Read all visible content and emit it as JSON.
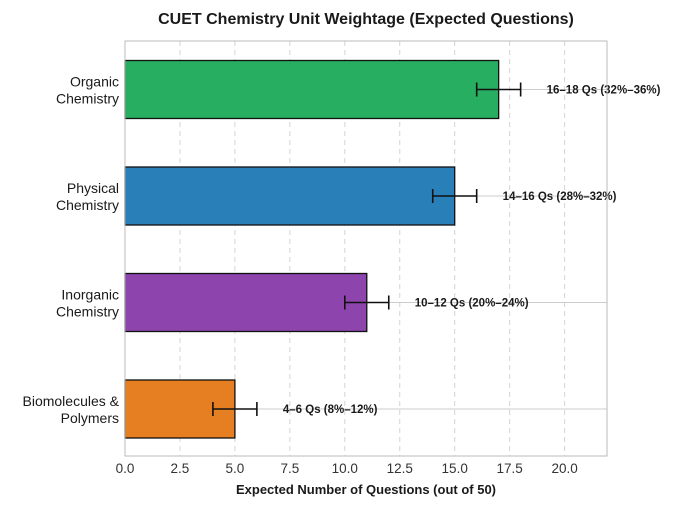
{
  "chart_data": {
    "type": "bar",
    "orientation": "horizontal",
    "title": "CUET Chemistry Unit Weightage (Expected Questions)",
    "xlabel": "Expected Number of Questions (out of 50)",
    "ylabel": "",
    "xlim": [
      0,
      22
    ],
    "xticks": [
      "0.0",
      "2.5",
      "5.0",
      "7.5",
      "10.0",
      "12.5",
      "15.0",
      "17.5",
      "20.0"
    ],
    "grid": true,
    "bars": [
      {
        "label_lines": [
          "Organic",
          "Chemistry"
        ],
        "value": 17,
        "err_low": 16,
        "err_high": 18,
        "annotation": "16–18 Qs (32%–36%)",
        "color": "#27ae60"
      },
      {
        "label_lines": [
          "Physical",
          "Chemistry"
        ],
        "value": 15,
        "err_low": 14,
        "err_high": 16,
        "annotation": "14–16 Qs (28%–32%)",
        "color": "#2980b9"
      },
      {
        "label_lines": [
          "Inorganic",
          "Chemistry"
        ],
        "value": 11,
        "err_low": 10,
        "err_high": 12,
        "annotation": "10–12 Qs (20%–24%)",
        "color": "#8e44ad"
      },
      {
        "label_lines": [
          "Biomolecules &",
          "Polymers"
        ],
        "value": 5,
        "err_low": 4,
        "err_high": 6,
        "annotation": "4–6 Qs (8%–12%)",
        "color": "#e67e22"
      }
    ]
  }
}
